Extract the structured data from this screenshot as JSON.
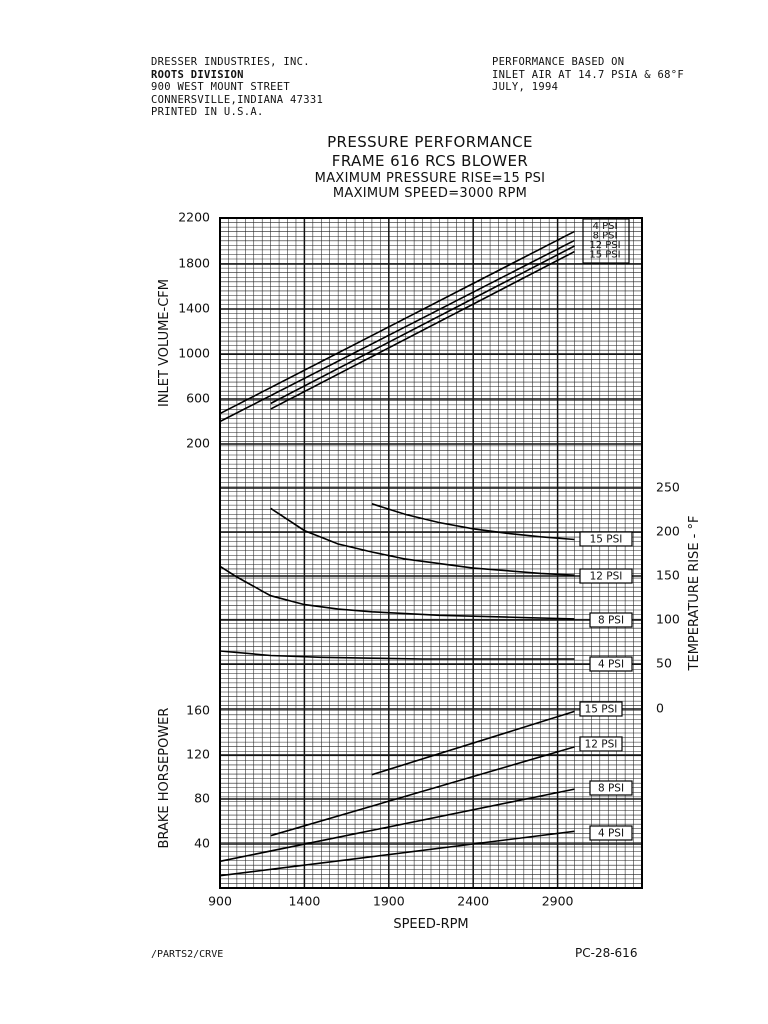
{
  "header_left": {
    "line1": "DRESSER INDUSTRIES, INC.",
    "line2": "ROOTS DIVISION",
    "line3": "900 WEST MOUNT STREET",
    "line4": "CONNERSVILLE,INDIANA 47331",
    "line5": "PRINTED IN U.S.A."
  },
  "header_right": {
    "line1": "PERFORMANCE BASED ON",
    "line2": "INLET AIR AT 14.7 PSIA & 68°F",
    "line3": "JULY, 1994"
  },
  "titles": {
    "title1": "PRESSURE PERFORMANCE",
    "title2": "FRAME 616 RCS BLOWER",
    "title3": "MAXIMUM PRESSURE RISE=15 PSI",
    "title4": "MAXIMUM SPEED=3000 RPM"
  },
  "footer": {
    "left": "/PARTS2/CRVE",
    "right": "PC-28-616"
  },
  "chart_data": [
    {
      "type": "line",
      "panel": "top",
      "ylabel": "INLET VOLUME-CFM",
      "ytick_labels": [
        "2200",
        "1800",
        "1400",
        "1000",
        "600",
        "200"
      ],
      "x_range": [
        900,
        3400
      ],
      "series": [
        {
          "name": "4 PSI",
          "x": [
            900,
            3000
          ],
          "y": [
            470,
            2090
          ]
        },
        {
          "name": "8 PSI",
          "x": [
            900,
            3000
          ],
          "y": [
            400,
            2010
          ]
        },
        {
          "name": "12 PSI",
          "x": [
            1200,
            3000
          ],
          "y": [
            560,
            1960
          ]
        },
        {
          "name": "15 PSI",
          "x": [
            1200,
            3000
          ],
          "y": [
            510,
            1910
          ]
        }
      ]
    },
    {
      "type": "line",
      "panel": "middle",
      "ylabel": "TEMPERATURE RISE - °F",
      "ytick_labels": [
        "250",
        "200",
        "150",
        "100",
        "50",
        "0"
      ],
      "y_axis_side": "right",
      "series": [
        {
          "name": "15 PSI",
          "x": [
            1800,
            2000,
            2200,
            2400,
            2600,
            2800,
            3000
          ],
          "y": [
            230,
            218,
            209,
            202,
            197,
            193,
            190
          ]
        },
        {
          "name": "12 PSI",
          "x": [
            1200,
            1400,
            1600,
            1800,
            2000,
            2200,
            2400,
            2600,
            2800,
            3000
          ],
          "y": [
            225,
            200,
            185,
            176,
            168,
            163,
            158,
            155,
            152,
            150
          ]
        },
        {
          "name": "8 PSI",
          "x": [
            900,
            1000,
            1200,
            1400,
            1600,
            1800,
            2000,
            2200,
            2400,
            2600,
            2800,
            3000
          ],
          "y": [
            160,
            148,
            127,
            117,
            112,
            109,
            107,
            105,
            104,
            103,
            102,
            101
          ]
        },
        {
          "name": "4 PSI",
          "x": [
            900,
            1200,
            1500,
            1800,
            2100,
            2400,
            2700,
            3000
          ],
          "y": [
            65,
            60,
            58,
            57,
            56,
            56,
            56,
            56
          ]
        }
      ]
    },
    {
      "type": "line",
      "panel": "bottom",
      "ylabel": "BRAKE HORSEPOWER",
      "xlabel": "SPEED-RPM",
      "xtick_labels": [
        "900",
        "1400",
        "1900",
        "2400",
        "2900"
      ],
      "ytick_labels": [
        "160",
        "120",
        "80",
        "40"
      ],
      "x_range": [
        900,
        3400
      ],
      "series": [
        {
          "name": "15 PSI",
          "x": [
            1800,
            3000
          ],
          "y": [
            103,
            160
          ]
        },
        {
          "name": "12 PSI",
          "x": [
            1200,
            3000
          ],
          "y": [
            48,
            128
          ]
        },
        {
          "name": "8 PSI",
          "x": [
            900,
            3000
          ],
          "y": [
            25,
            90
          ]
        },
        {
          "name": "4 PSI",
          "x": [
            900,
            3000
          ],
          "y": [
            12,
            52
          ]
        }
      ]
    }
  ]
}
